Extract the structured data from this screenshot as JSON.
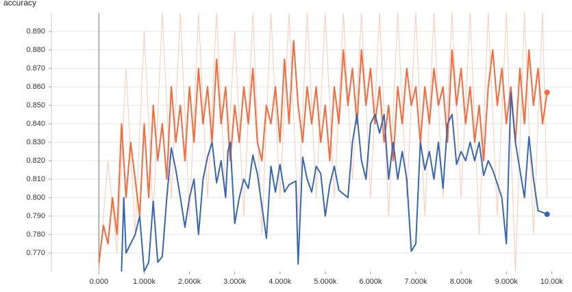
{
  "chart_data": {
    "type": "line",
    "title": "accuracy",
    "xlim": [
      -1050,
      10450
    ],
    "ylim": [
      0.76,
      0.9
    ],
    "xticks": [
      {
        "value": 0,
        "label": "0.000"
      },
      {
        "value": 1000,
        "label": "1.000k"
      },
      {
        "value": 2000,
        "label": "2.000k"
      },
      {
        "value": 3000,
        "label": "3.000k"
      },
      {
        "value": 4000,
        "label": "4.000k"
      },
      {
        "value": 5000,
        "label": "5.000k"
      },
      {
        "value": 6000,
        "label": "6.000k"
      },
      {
        "value": 7000,
        "label": "7.000k"
      },
      {
        "value": 8000,
        "label": "8.000k"
      },
      {
        "value": 9000,
        "label": "9.000k"
      },
      {
        "value": 10000,
        "label": "10.00k"
      }
    ],
    "yticks": [
      {
        "value": 0.77,
        "label": "0.770"
      },
      {
        "value": 0.78,
        "label": "0.780"
      },
      {
        "value": 0.79,
        "label": "0.790"
      },
      {
        "value": 0.8,
        "label": "0.800"
      },
      {
        "value": 0.81,
        "label": "0.810"
      },
      {
        "value": 0.82,
        "label": "0.820"
      },
      {
        "value": 0.83,
        "label": "0.830"
      },
      {
        "value": 0.84,
        "label": "0.840"
      },
      {
        "value": 0.85,
        "label": "0.850"
      },
      {
        "value": 0.86,
        "label": "0.860"
      },
      {
        "value": 0.87,
        "label": "0.870"
      },
      {
        "value": 0.88,
        "label": "0.880"
      },
      {
        "value": 0.89,
        "label": "0.890"
      }
    ],
    "grid": true,
    "series": [
      {
        "color": "#ffc9b5",
        "width": 1,
        "x": [
          0,
          200,
          400,
          600,
          800,
          1000,
          1200,
          1400,
          1600,
          1800,
          2000,
          2200,
          2400,
          2600,
          2800,
          3000,
          3200,
          3400,
          3600,
          3800,
          4000,
          4200,
          4400,
          4600,
          4800,
          5000,
          5200,
          5400,
          5600,
          5800,
          6000,
          6200,
          6400,
          6600,
          6800,
          7000,
          7200,
          7400,
          7600,
          7800,
          8000,
          8200,
          8400,
          8600,
          8800,
          9000,
          9200,
          9400,
          9600,
          9800,
          9900
        ],
        "values": [
          0.76,
          0.82,
          0.77,
          0.87,
          0.78,
          0.89,
          0.79,
          0.9,
          0.8,
          0.9,
          0.79,
          0.9,
          0.8,
          0.9,
          0.8,
          0.89,
          0.79,
          0.9,
          0.78,
          0.9,
          0.8,
          0.9,
          0.79,
          0.9,
          0.8,
          0.9,
          0.8,
          0.9,
          0.81,
          0.9,
          0.8,
          0.9,
          0.79,
          0.9,
          0.8,
          0.9,
          0.79,
          0.9,
          0.8,
          0.9,
          0.8,
          0.9,
          0.78,
          0.9,
          0.79,
          0.9,
          0.76,
          0.9,
          0.78,
          0.9,
          0.8
        ]
      },
      {
        "color": "#ff6633",
        "width": 2,
        "x": [
          0,
          100,
          200,
          300,
          400,
          500,
          600,
          700,
          800,
          900,
          1000,
          1100,
          1200,
          1300,
          1400,
          1500,
          1600,
          1700,
          1800,
          1900,
          2000,
          2100,
          2200,
          2300,
          2400,
          2500,
          2600,
          2700,
          2800,
          2900,
          3000,
          3100,
          3200,
          3300,
          3400,
          3500,
          3600,
          3700,
          3800,
          3900,
          4000,
          4100,
          4200,
          4300,
          4400,
          4500,
          4600,
          4700,
          4800,
          4900,
          5000,
          5100,
          5200,
          5300,
          5400,
          5500,
          5600,
          5700,
          5800,
          5900,
          6000,
          6100,
          6200,
          6300,
          6400,
          6500,
          6600,
          6700,
          6800,
          6900,
          7000,
          7100,
          7200,
          7300,
          7400,
          7500,
          7600,
          7700,
          7800,
          7900,
          8000,
          8100,
          8200,
          8300,
          8400,
          8500,
          8600,
          8700,
          8800,
          8900,
          9000,
          9100,
          9200,
          9300,
          9400,
          9500,
          9600,
          9700,
          9800,
          9900
        ],
        "values": [
          0.765,
          0.785,
          0.775,
          0.8,
          0.78,
          0.84,
          0.8,
          0.83,
          0.81,
          0.79,
          0.84,
          0.8,
          0.85,
          0.82,
          0.84,
          0.81,
          0.86,
          0.83,
          0.85,
          0.82,
          0.86,
          0.83,
          0.87,
          0.84,
          0.86,
          0.83,
          0.875,
          0.84,
          0.86,
          0.82,
          0.85,
          0.83,
          0.86,
          0.84,
          0.87,
          0.83,
          0.82,
          0.85,
          0.84,
          0.86,
          0.83,
          0.875,
          0.84,
          0.885,
          0.85,
          0.83,
          0.86,
          0.84,
          0.86,
          0.83,
          0.85,
          0.82,
          0.86,
          0.84,
          0.88,
          0.85,
          0.87,
          0.84,
          0.88,
          0.85,
          0.87,
          0.84,
          0.86,
          0.83,
          0.85,
          0.82,
          0.86,
          0.84,
          0.87,
          0.85,
          0.86,
          0.83,
          0.86,
          0.84,
          0.87,
          0.85,
          0.86,
          0.83,
          0.88,
          0.85,
          0.87,
          0.84,
          0.86,
          0.83,
          0.85,
          0.82,
          0.86,
          0.88,
          0.85,
          0.87,
          0.84,
          0.86,
          0.83,
          0.87,
          0.84,
          0.88,
          0.85,
          0.87,
          0.84,
          0.857
        ]
      },
      {
        "color": "#3366bb",
        "width": 2,
        "x": [
          500,
          550,
          600,
          800,
          900,
          1000,
          1100,
          1200,
          1300,
          1400,
          1500,
          1600,
          1700,
          1800,
          1900,
          2000,
          2100,
          2200,
          2300,
          2400,
          2500,
          2600,
          2700,
          2800,
          2850,
          2900,
          3000,
          3100,
          3200,
          3300,
          3400,
          3500,
          3700,
          3800,
          3900,
          4000,
          4100,
          4200,
          4350,
          4400,
          4500,
          4600,
          4700,
          4800,
          4900,
          5000,
          5100,
          5200,
          5300,
          5500,
          5600,
          5700,
          5800,
          5900,
          6000,
          6100,
          6200,
          6300,
          6400,
          6500,
          6600,
          6700,
          6800,
          6900,
          7000,
          7100,
          7200,
          7300,
          7400,
          7500,
          7600,
          7700,
          7800,
          7900,
          8000,
          8100,
          8200,
          8300,
          8400,
          8500,
          8600,
          8700,
          8900,
          9000,
          9100,
          9200,
          9400,
          9500,
          9600,
          9700,
          9900
        ],
        "values": [
          0.76,
          0.8,
          0.77,
          0.78,
          0.79,
          0.76,
          0.765,
          0.798,
          0.765,
          0.768,
          0.8,
          0.827,
          0.815,
          0.8,
          0.784,
          0.8,
          0.81,
          0.78,
          0.81,
          0.822,
          0.83,
          0.808,
          0.82,
          0.8,
          0.825,
          0.83,
          0.786,
          0.8,
          0.81,
          0.805,
          0.823,
          0.813,
          0.778,
          0.817,
          0.803,
          0.818,
          0.803,
          0.807,
          0.809,
          0.764,
          0.822,
          0.81,
          0.803,
          0.817,
          0.813,
          0.79,
          0.807,
          0.817,
          0.804,
          0.8,
          0.83,
          0.845,
          0.82,
          0.81,
          0.84,
          0.845,
          0.835,
          0.845,
          0.81,
          0.83,
          0.81,
          0.825,
          0.81,
          0.771,
          0.775,
          0.83,
          0.815,
          0.825,
          0.81,
          0.83,
          0.805,
          0.84,
          0.845,
          0.818,
          0.825,
          0.82,
          0.83,
          0.82,
          0.83,
          0.812,
          0.82,
          0.815,
          0.8,
          0.775,
          0.857,
          0.83,
          0.8,
          0.833,
          0.81,
          0.793,
          0.791
        ]
      }
    ]
  }
}
